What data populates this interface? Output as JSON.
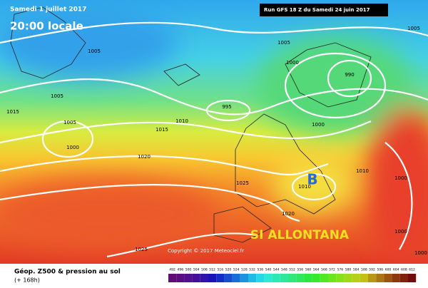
{
  "header": {
    "date": "Samedi 1 juillet 2017",
    "time": "20:00 locale",
    "run": "Run GFS 18 Z du Samedi 24 juin 2017"
  },
  "isobar_labels": [
    "1005",
    "1005",
    "1005",
    "1000",
    "990",
    "1005",
    "995",
    "1015",
    "1010",
    "1005",
    "1000",
    "1015",
    "1000",
    "1020",
    "1010",
    "1025",
    "1020",
    "1000",
    "1000",
    "1025",
    "1000",
    "1010"
  ],
  "low_marker": "B",
  "annotation": "SI ALLONTANA",
  "copyright": "Copyright © 2017 Meteociel.fr",
  "footer": {
    "title": "Géop. Z500 & pression au sol",
    "lead": "(+ 168h)"
  },
  "scale": [
    "492",
    "496",
    "500",
    "504",
    "508",
    "512",
    "516",
    "520",
    "524",
    "528",
    "532",
    "536",
    "540",
    "544",
    "548",
    "552",
    "556",
    "560",
    "564",
    "568",
    "572",
    "576",
    "580",
    "584",
    "588",
    "592",
    "596",
    "600",
    "604",
    "608",
    "612"
  ]
}
